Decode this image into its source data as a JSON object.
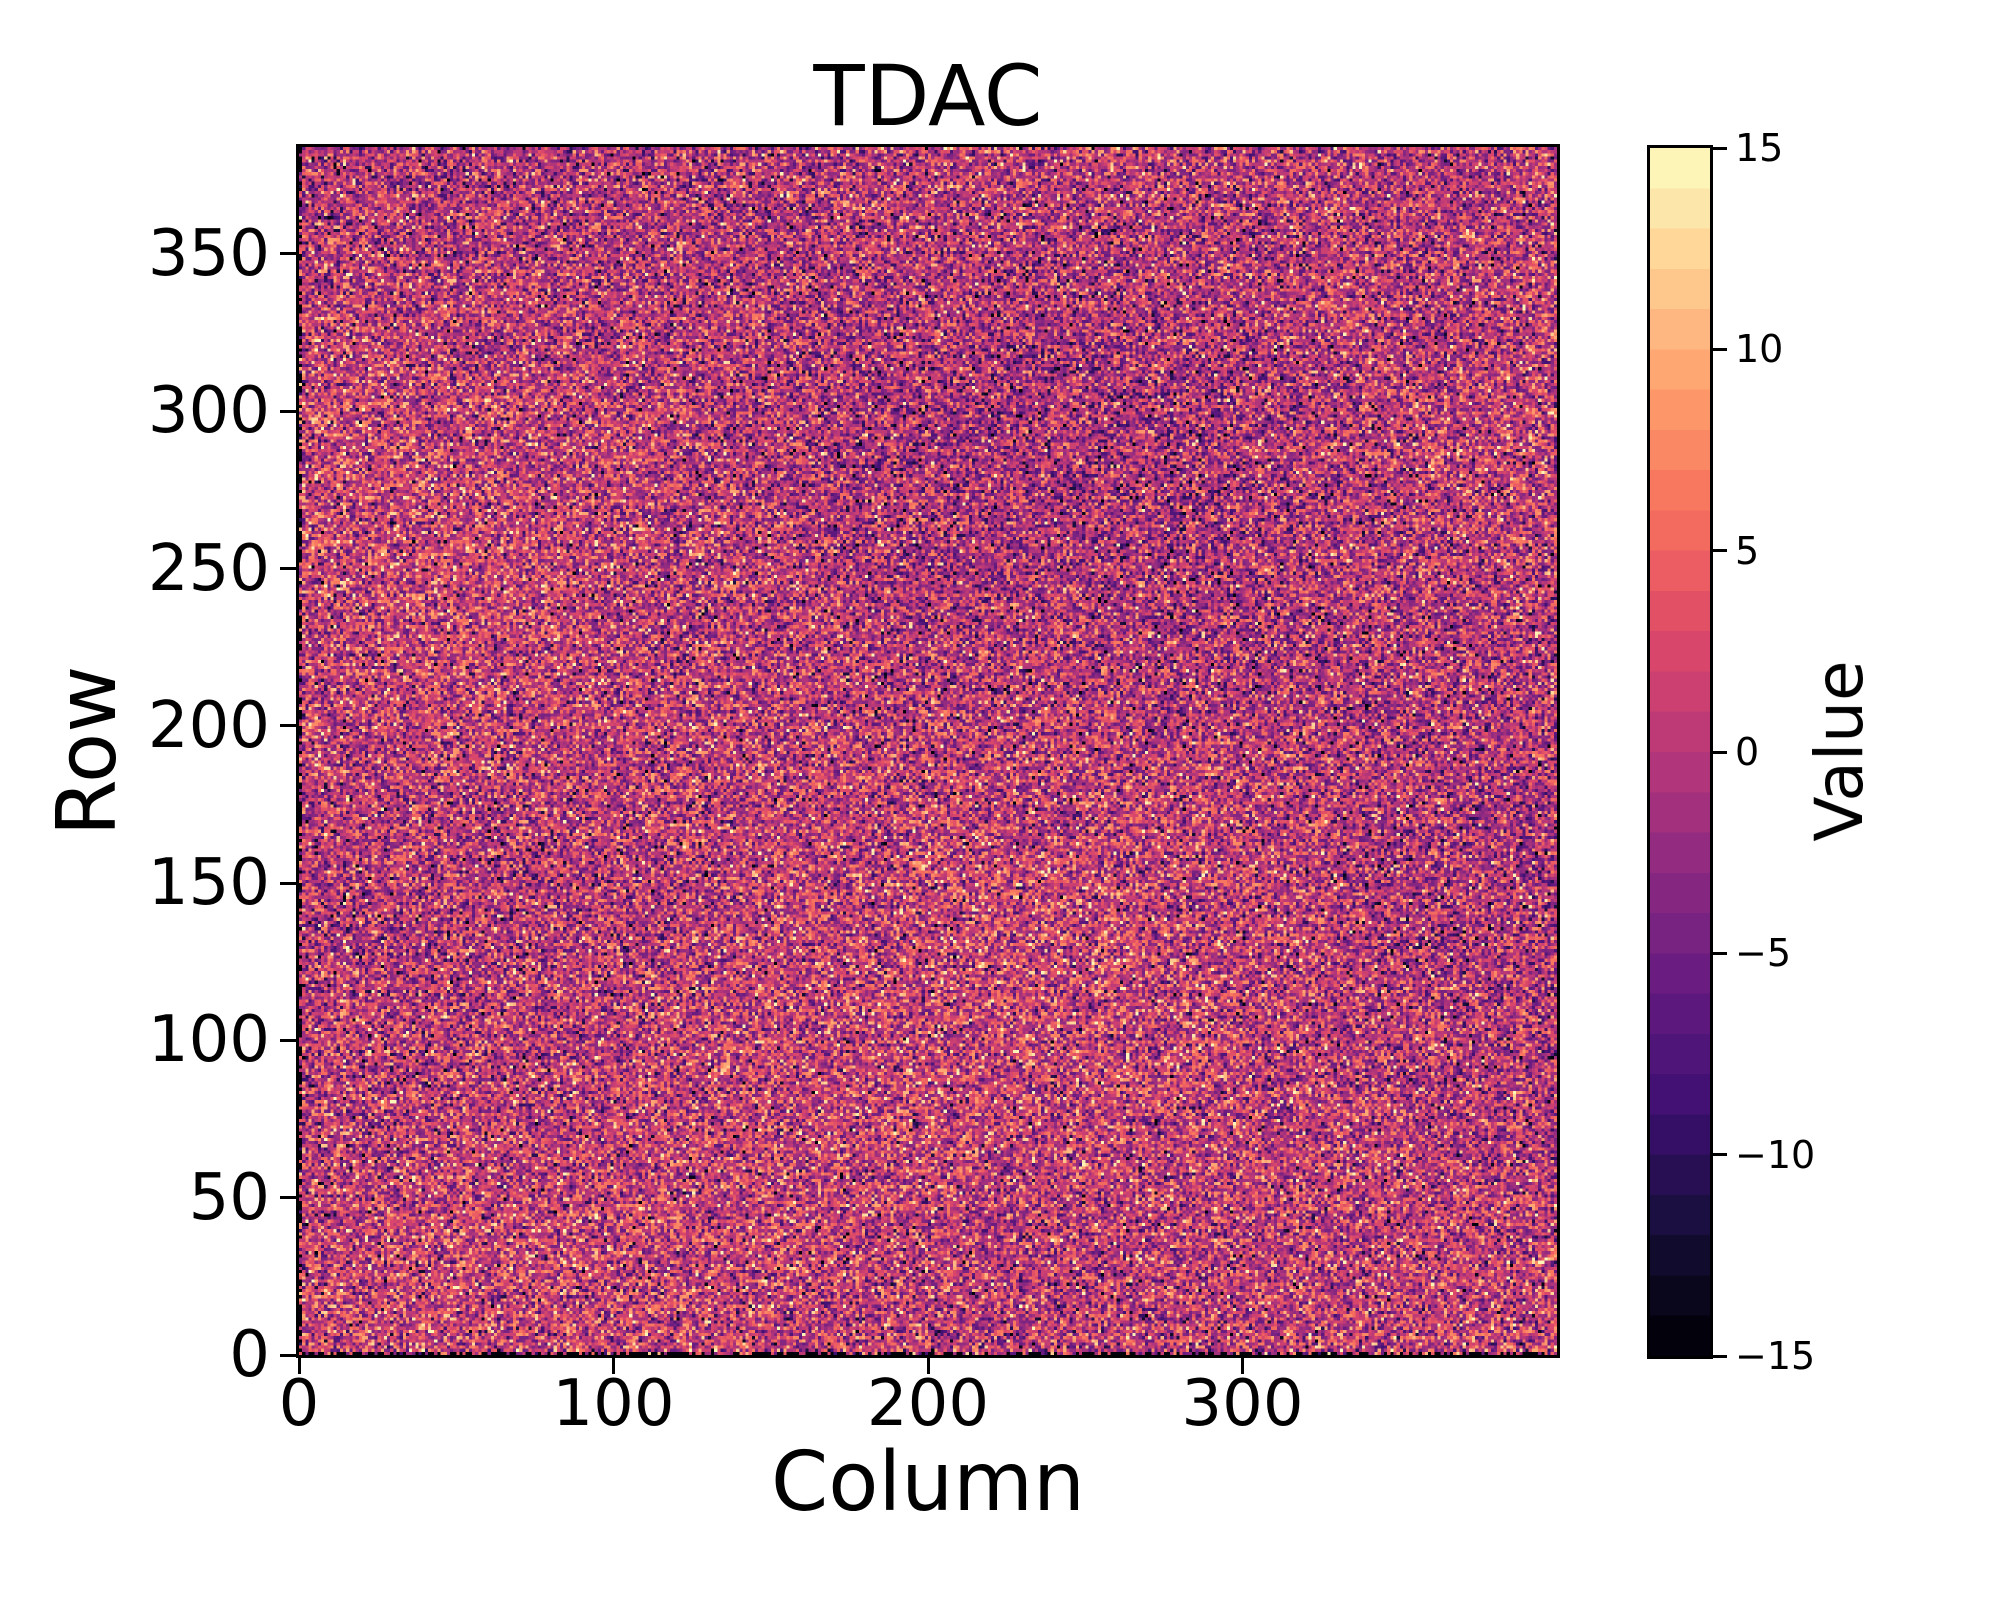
{
  "figure": {
    "title": "TDAC",
    "background_color": "#ffffff",
    "text_color": "#000000"
  },
  "chart_data": {
    "type": "heatmap",
    "title": "TDAC",
    "xlabel": "Column",
    "ylabel": "Row",
    "colorbar_label": "Value",
    "grid": {
      "columns": 400,
      "rows": 384
    },
    "xlim": [
      0,
      400
    ],
    "ylim": [
      0,
      384
    ],
    "vmin": -15,
    "vmax": 15,
    "levels": 30,
    "colormap": {
      "name": "magma",
      "anchors": [
        "#000004",
        "#140E36",
        "#3B0F70",
        "#641A80",
        "#8C2981",
        "#B73779",
        "#DE4968",
        "#F7705C",
        "#FE9F6D",
        "#FECF92",
        "#FCFDBF"
      ]
    },
    "x_ticks": [
      0,
      100,
      200,
      300
    ],
    "x_tick_labels": [
      "0",
      "100",
      "200",
      "300"
    ],
    "y_ticks": [
      0,
      50,
      100,
      150,
      200,
      250,
      300,
      350
    ],
    "y_tick_labels": [
      "0",
      "50",
      "100",
      "150",
      "200",
      "250",
      "300",
      "350"
    ],
    "colorbar_ticks": [
      15,
      10,
      5,
      0,
      -5,
      -10,
      -15
    ],
    "colorbar_tick_labels": [
      "15",
      "10",
      "5",
      "0",
      "−5",
      "−10",
      "−15"
    ],
    "distribution": {
      "type": "gaussian_integer_noise",
      "mean": 0,
      "std": 5.5,
      "spatial_amplitude": 1.0,
      "seed": 1337,
      "clip": [
        -15,
        15
      ]
    },
    "edge_saturation": {
      "columns": [
        0
      ],
      "rows": [
        0
      ],
      "probability": 0.45,
      "value": -15
    },
    "grid_lines": false,
    "legend": "none"
  }
}
